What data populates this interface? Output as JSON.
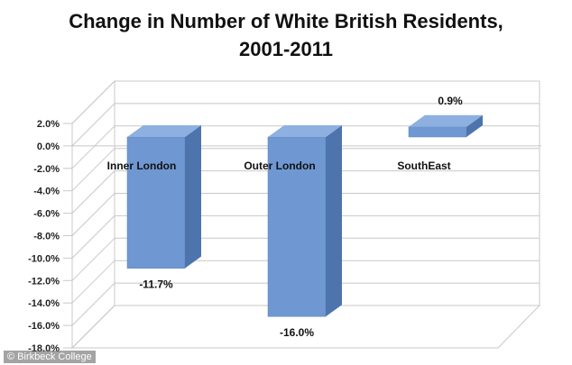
{
  "chart_data": {
    "type": "bar",
    "title": "Change in Number of White British Residents, 2001-2011",
    "title_lines": [
      "Change in Number of White British Residents,",
      "2001-2011"
    ],
    "categories": [
      "Inner London",
      "Outer London",
      "SouthEast"
    ],
    "values": [
      -11.7,
      -16.0,
      0.9
    ],
    "data_labels": [
      "-11.7%",
      "-16.0%",
      "0.9%"
    ],
    "yticks": [
      2.0,
      0.0,
      -2.0,
      -4.0,
      -6.0,
      -8.0,
      -10.0,
      -12.0,
      -14.0,
      -16.0,
      -18.0
    ],
    "ytick_labels": [
      "2.0%",
      "0.0%",
      "-2.0%",
      "-4.0%",
      "-6.0%",
      "-8.0%",
      "-10.0%",
      "-12.0%",
      "-14.0%",
      "-16.0%",
      "-18.0%"
    ],
    "ylim": [
      -18,
      2
    ],
    "xlabel": "",
    "ylabel": "",
    "grid": true,
    "style": "3d",
    "bar_color": "#6f98d2",
    "bar_side_color": "#4d74ad",
    "bar_top_color": "#8db0e0"
  },
  "credit": "© Birkbeck College"
}
